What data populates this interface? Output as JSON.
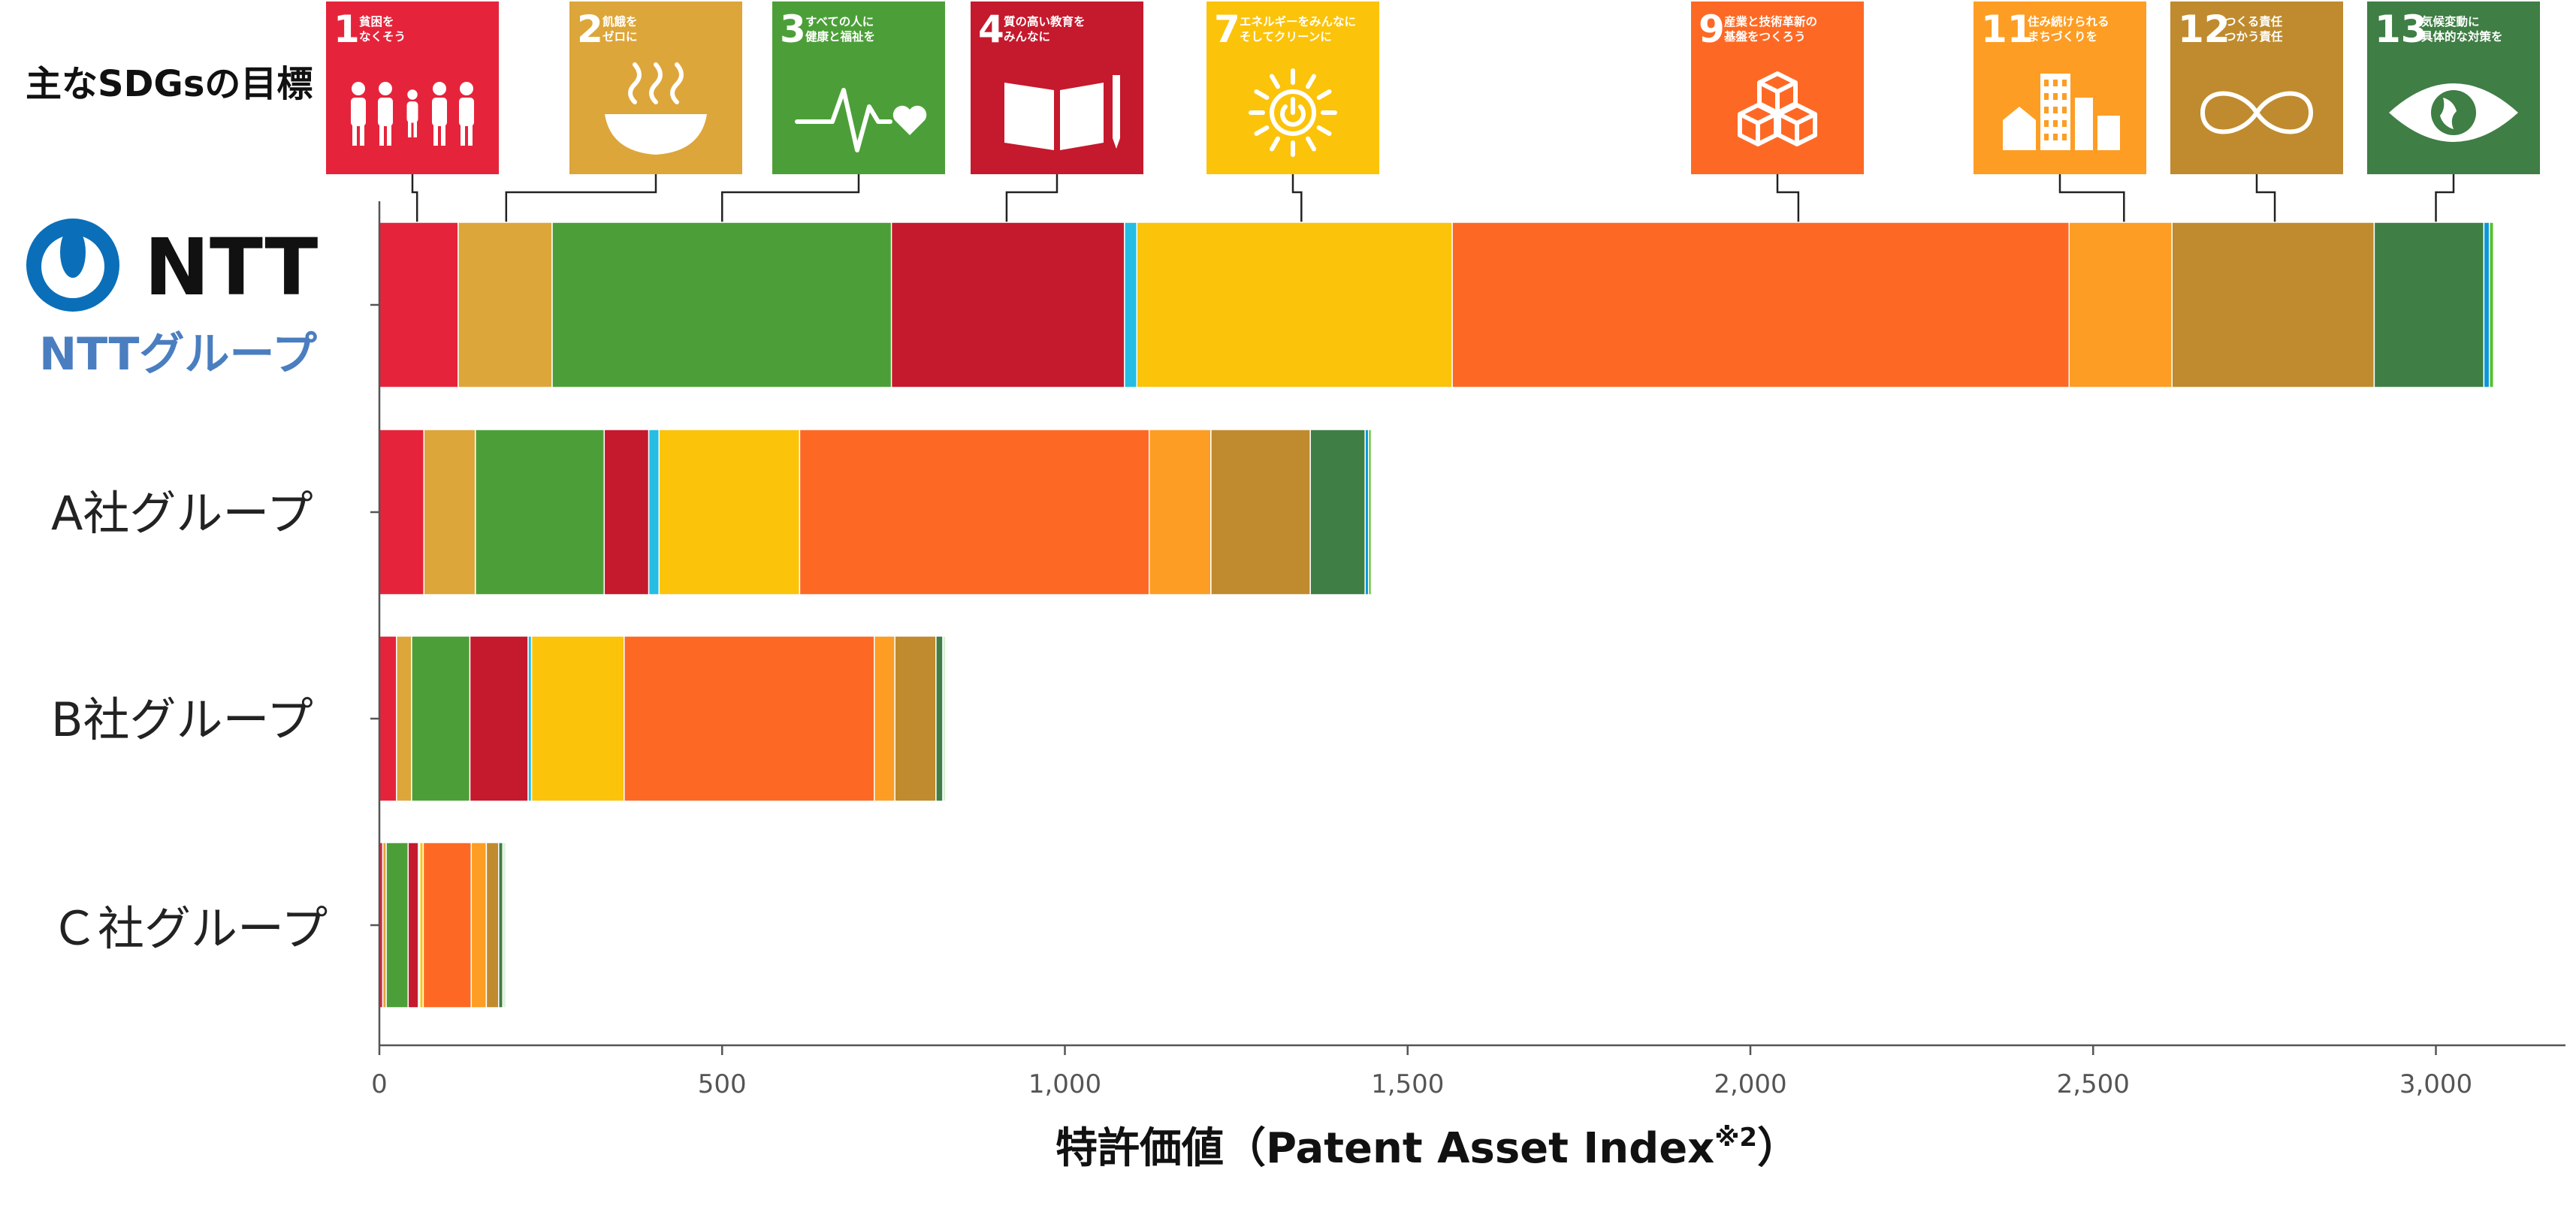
{
  "sdg_heading": "主なSDGsの目標",
  "ntt_logo": {
    "wordmark": "NTT",
    "group_label": "NTTグループ",
    "color": "#0a6fb8"
  },
  "chart_data": {
    "type": "bar",
    "orientation": "horizontal",
    "stacked": true,
    "xlabel": "特許価値（Patent Asset Index",
    "xlabel_sup": "※2",
    "xlabel_end": "）",
    "xlim": [
      0,
      3200
    ],
    "ticks": [
      0,
      500,
      1000,
      1500,
      2000,
      2500,
      3000
    ],
    "tick_labels": [
      "0",
      "500",
      "1,000",
      "1,500",
      "2,000",
      "2,500",
      "3,000"
    ],
    "grid": false,
    "categories": [
      "NTTグループ",
      "A社グループ",
      "B社グループ",
      "Ｃ社グループ"
    ],
    "series": [
      {
        "sdg": 1,
        "color": "#e5243b",
        "values": [
          115,
          65,
          25,
          5
        ]
      },
      {
        "sdg": 2,
        "color": "#dda63a",
        "values": [
          137,
          75,
          22,
          5
        ]
      },
      {
        "sdg": 3,
        "color": "#4c9f38",
        "values": [
          495,
          188,
          85,
          32
        ]
      },
      {
        "sdg": 4,
        "color": "#c5192d",
        "values": [
          340,
          65,
          85,
          15
        ]
      },
      {
        "sdg": 6,
        "color": "#26bde2",
        "values": [
          18,
          15,
          5,
          2
        ]
      },
      {
        "sdg": 7,
        "color": "#fcc30b",
        "values": [
          460,
          205,
          135,
          5
        ]
      },
      {
        "sdg": 9,
        "color": "#fd6925",
        "values": [
          900,
          510,
          365,
          70
        ]
      },
      {
        "sdg": 11,
        "color": "#fd9d24",
        "values": [
          150,
          90,
          30,
          22
        ]
      },
      {
        "sdg": 12,
        "color": "#bf8b2e",
        "values": [
          295,
          145,
          60,
          18
        ]
      },
      {
        "sdg": 13,
        "color": "#3f7e44",
        "values": [
          160,
          80,
          10,
          6
        ]
      },
      {
        "sdg": 14,
        "color": "#0a97d9",
        "values": [
          8,
          5,
          2,
          2
        ]
      },
      {
        "sdg": 15,
        "color": "#56c02b",
        "values": [
          6,
          4,
          2,
          2
        ]
      }
    ]
  },
  "sdg_icons": [
    {
      "number": "1",
      "line1": "貧困を",
      "line2": "なくそう",
      "color": "#e5243b",
      "pictogram": "family-icon",
      "target": 55
    },
    {
      "number": "2",
      "line1": "飢餓を",
      "line2": "ゼロに",
      "color": "#dda63a",
      "pictogram": "bowl-icon",
      "target": 185
    },
    {
      "number": "3",
      "line1": "すべての人に",
      "line2": "健康と福祉を",
      "color": "#4c9f38",
      "pictogram": "heartbeat-icon",
      "target": 500
    },
    {
      "number": "4",
      "line1": "質の高い教育を",
      "line2": "みんなに",
      "color": "#c5192d",
      "pictogram": "book-icon",
      "target": 915
    },
    {
      "number": "7",
      "line1": "エネルギーをみんなに",
      "line2": "そしてクリーンに",
      "color": "#fcc30b",
      "pictogram": "sun-power-icon",
      "target": 1345
    },
    {
      "number": "9",
      "line1": "産業と技術革新の",
      "line2": "基盤をつくろう",
      "color": "#fd6925",
      "pictogram": "cubes-icon",
      "target": 2070
    },
    {
      "number": "11",
      "line1": "住み続けられる",
      "line2": "まちづくりを",
      "color": "#fd9d24",
      "pictogram": "city-icon",
      "target": 2545
    },
    {
      "number": "12",
      "line1": "つくる責任",
      "line2": "つかう責任",
      "color": "#bf8b2e",
      "pictogram": "infinity-icon",
      "target": 2765
    },
    {
      "number": "13",
      "line1": "気候変動に",
      "line2": "具体的な対策を",
      "color": "#3f7e44",
      "pictogram": "eye-globe-icon",
      "target": 3000
    }
  ]
}
